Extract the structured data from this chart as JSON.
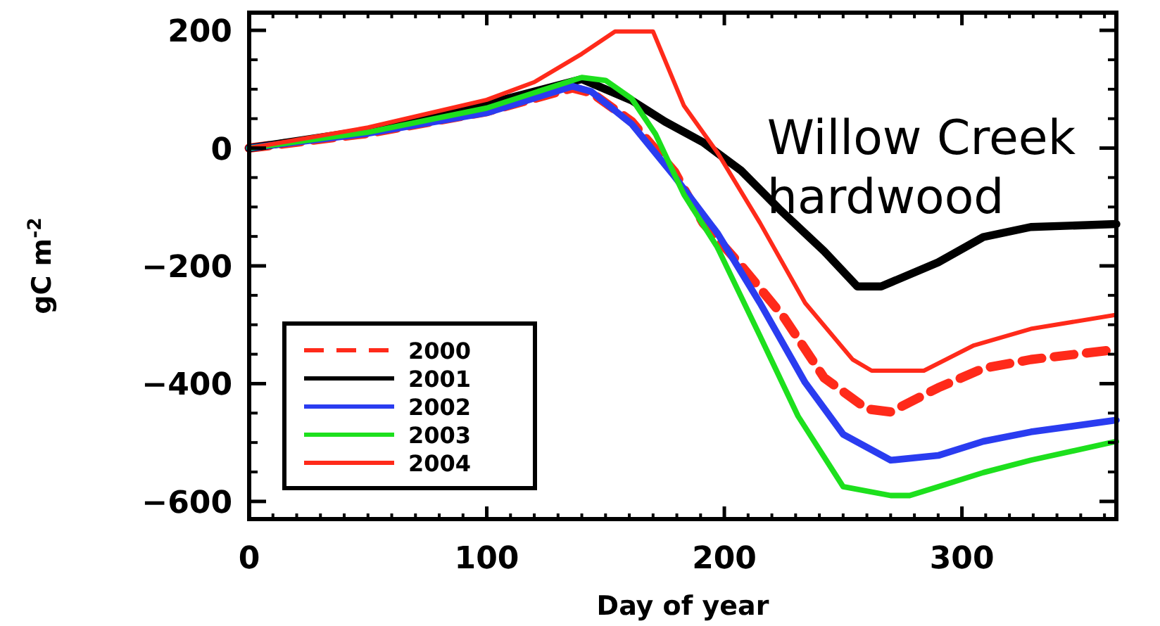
{
  "chart_data": {
    "type": "line",
    "xlabel": "Day of year",
    "ylabel": "gC m$^{-2}$",
    "xlim": [
      0,
      365
    ],
    "ylim": [
      -630,
      230
    ],
    "xticks": [
      0,
      100,
      200,
      300
    ],
    "yticks": [
      -600,
      -400,
      -200,
      0,
      200
    ],
    "legend": "bottom left",
    "grid": false,
    "marker": "none",
    "annotations": [
      "Willow Creek hardwood"
    ],
    "series": [
      {
        "name": "2000",
        "color": "#ff2a1a",
        "line_style": "dashed",
        "x": [
          0,
          50,
          100,
          136,
          144,
          161,
          179,
          191,
          207,
          225,
          242,
          260,
          270,
          290,
          309,
          329,
          365
        ],
        "values": [
          0,
          25,
          62,
          102,
          94,
          45,
          -40,
          -127,
          -199,
          -287,
          -390,
          -443,
          -448,
          -407,
          -374,
          -359,
          -342
        ]
      },
      {
        "name": "2001",
        "color": "#000000",
        "line_style": "solid",
        "x": [
          0,
          50,
          100,
          140,
          161,
          175,
          191,
          207,
          223,
          242,
          256,
          266,
          290,
          309,
          329,
          365
        ],
        "values": [
          0,
          30,
          75,
          117,
          81,
          45,
          10,
          -38,
          -103,
          -175,
          -235,
          -235,
          -194,
          -151,
          -134,
          -129
        ]
      },
      {
        "name": "2002",
        "color": "#2a3cf0",
        "line_style": "solid",
        "x": [
          0,
          50,
          100,
          136,
          144,
          161,
          179,
          197,
          215,
          234,
          250,
          270,
          290,
          309,
          329,
          365
        ],
        "values": [
          0,
          25,
          60,
          105,
          96,
          41,
          -48,
          -144,
          -263,
          -398,
          -486,
          -530,
          -522,
          -498,
          -482,
          -462
        ]
      },
      {
        "name": "2003",
        "color": "#1de01d",
        "line_style": "solid",
        "x": [
          0,
          50,
          100,
          140,
          150,
          161,
          171,
          183,
          197,
          215,
          231,
          250,
          270,
          278,
          290,
          309,
          329,
          365
        ],
        "values": [
          0,
          27,
          68,
          120,
          115,
          84,
          24,
          -79,
          -168,
          -319,
          -455,
          -575,
          -590,
          -590,
          -575,
          -551,
          -530,
          -498
        ]
      },
      {
        "name": "2004",
        "color": "#ff2a1a",
        "line_style": "solid",
        "x": [
          0,
          50,
          100,
          120,
          140,
          154,
          170,
          183,
          197,
          215,
          234,
          254,
          262,
          284,
          305,
          329,
          365
        ],
        "values": [
          0,
          35,
          82,
          112,
          160,
          198,
          198,
          72,
          -7,
          -127,
          -263,
          -359,
          -378,
          -378,
          -335,
          -307,
          -283
        ]
      }
    ]
  }
}
